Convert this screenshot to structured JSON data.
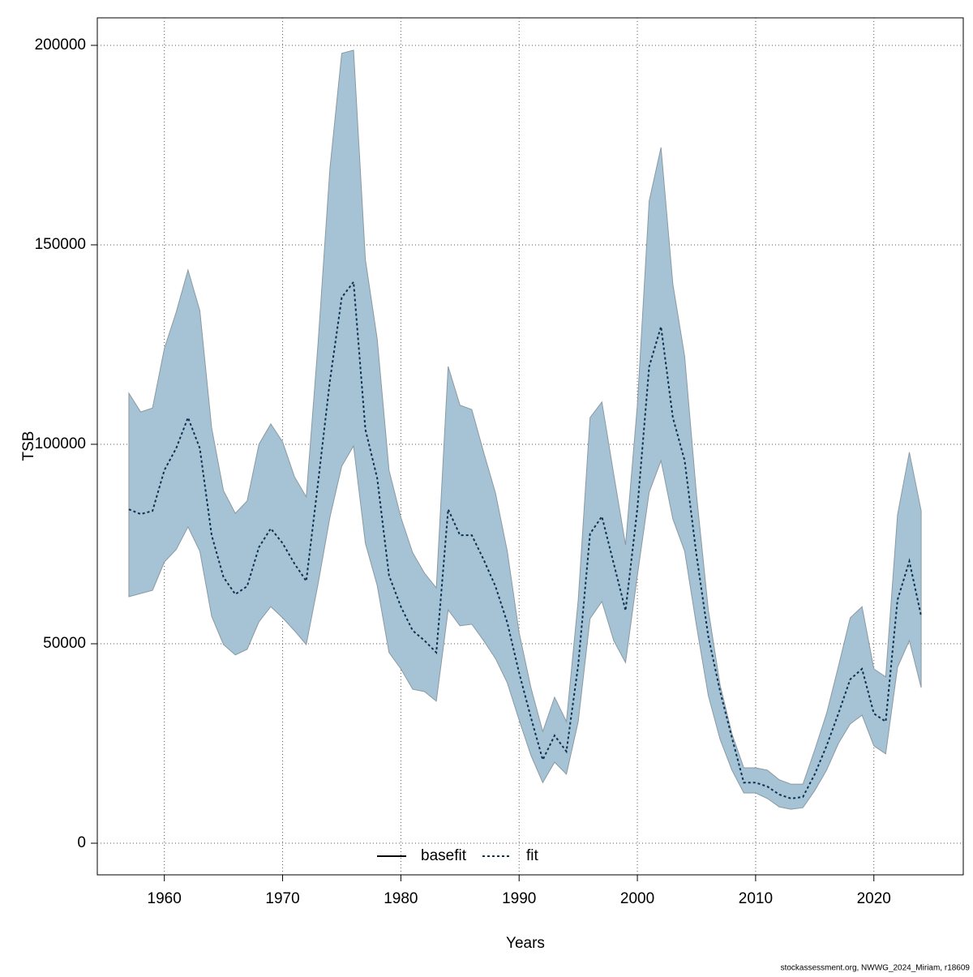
{
  "chart_data": {
    "type": "line",
    "x_label": "Years",
    "y_label": "TSB",
    "footnote": "stockassessment.org, NWWG_2024_Miriam, r18609",
    "x": [
      1957,
      1958,
      1959,
      1960,
      1961,
      1962,
      1963,
      1964,
      1965,
      1966,
      1967,
      1968,
      1969,
      1970,
      1971,
      1972,
      1973,
      1974,
      1975,
      1976,
      1977,
      1978,
      1979,
      1980,
      1981,
      1982,
      1983,
      1984,
      1985,
      1986,
      1987,
      1988,
      1989,
      1990,
      1991,
      1992,
      1993,
      1994,
      1995,
      1996,
      1997,
      1998,
      1999,
      2000,
      2001,
      2002,
      2003,
      2004,
      2005,
      2006,
      2007,
      2008,
      2009,
      2010,
      2011,
      2012,
      2013,
      2014,
      2015,
      2016,
      2017,
      2018,
      2019,
      2020,
      2021,
      2022,
      2023,
      2024
    ],
    "band": {
      "color": "#a5c3d4",
      "edge": "#8a9aa4",
      "upper": [
        112800,
        108100,
        109100,
        124000,
        133100,
        143700,
        133500,
        104100,
        88400,
        82700,
        85800,
        100000,
        105100,
        100600,
        91900,
        86800,
        125400,
        169100,
        198000,
        198800,
        146300,
        126400,
        93500,
        81700,
        72800,
        67700,
        64000,
        119500,
        109800,
        108700,
        98000,
        87800,
        73200,
        52800,
        39000,
        28000,
        36600,
        30500,
        61000,
        106700,
        110600,
        92500,
        74800,
        109800,
        161000,
        174400,
        140200,
        122000,
        87400,
        58500,
        39600,
        27400,
        18900,
        18900,
        18300,
        15900,
        14800,
        14800,
        23400,
        32500,
        44300,
        56500,
        59300,
        43700,
        41700,
        82300,
        98000,
        83300
      ],
      "lower": [
        61800,
        62600,
        63400,
        70500,
        73600,
        79300,
        73200,
        56900,
        49800,
        47200,
        48600,
        55500,
        59300,
        56500,
        53300,
        49800,
        65000,
        81700,
        94500,
        99600,
        75200,
        64600,
        47800,
        43700,
        38600,
        38000,
        35600,
        58500,
        54500,
        54900,
        50800,
        46300,
        40200,
        30900,
        22000,
        15200,
        20300,
        17300,
        30500,
        56300,
        60600,
        50800,
        45300,
        67100,
        88000,
        95900,
        81300,
        73200,
        54500,
        37000,
        26000,
        18300,
        12600,
        12600,
        11200,
        9100,
        8500,
        8900,
        13200,
        18300,
        25000,
        29900,
        32100,
        24400,
        22400,
        44100,
        50800,
        39000
      ]
    },
    "series": [
      {
        "name": "basefit",
        "color": "#000000",
        "dash": "none"
      },
      {
        "name": "fit",
        "color": "#0a3050",
        "dash": "3,3",
        "values": [
          83700,
          82500,
          83300,
          93500,
          99000,
          106700,
          99000,
          77200,
          66700,
          62400,
          64400,
          74200,
          78900,
          75200,
          70100,
          65700,
          90400,
          115900,
          136800,
          140700,
          103700,
          91500,
          67100,
          59300,
          53300,
          50800,
          47800,
          83700,
          77200,
          77200,
          71100,
          64400,
          55300,
          42700,
          31500,
          20900,
          27000,
          23000,
          44700,
          77600,
          81900,
          70100,
          58300,
          83900,
          119500,
          129500,
          106700,
          95900,
          72200,
          51800,
          38000,
          26400,
          15200,
          15200,
          14200,
          12200,
          11200,
          11600,
          17300,
          24400,
          32500,
          41100,
          43700,
          32500,
          30500,
          61000,
          70700,
          56900
        ]
      }
    ],
    "xlim": [
      1954.33,
      2027.56
    ],
    "ylim": [
      -7927,
      206900
    ],
    "xticks": [
      1960,
      1970,
      1980,
      1990,
      2000,
      2010,
      2020
    ],
    "yticks": [
      0,
      50000,
      100000,
      150000,
      200000
    ],
    "grid": true
  }
}
